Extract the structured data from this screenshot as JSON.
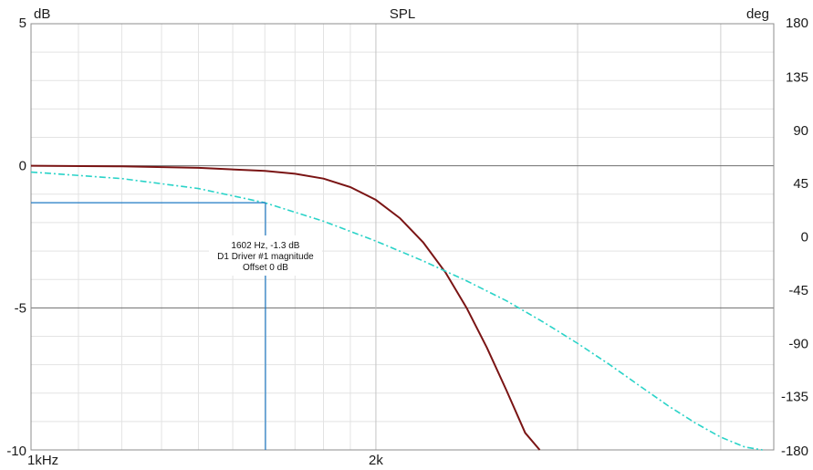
{
  "chart_data": {
    "type": "line",
    "title": "SPL",
    "left_unit": "dB",
    "right_unit": "deg",
    "x_scale": "log",
    "xlim": [
      1000,
      4450
    ],
    "ylim": [
      -10,
      5
    ],
    "y2lim": [
      -180,
      180
    ],
    "x_ticks": [
      {
        "value": 1000,
        "label": "1kHz"
      },
      {
        "value": 2000,
        "label": "2k"
      }
    ],
    "y_ticks": [
      {
        "value": 5,
        "label": "5"
      },
      {
        "value": 0,
        "label": "0"
      },
      {
        "value": -5,
        "label": "-5"
      },
      {
        "value": -10,
        "label": "-10"
      }
    ],
    "y2_ticks": [
      {
        "value": 180,
        "label": "180"
      },
      {
        "value": 135,
        "label": "135"
      },
      {
        "value": 90,
        "label": "90"
      },
      {
        "value": 45,
        "label": "45"
      },
      {
        "value": 0,
        "label": "0"
      },
      {
        "value": -45,
        "label": "-45"
      },
      {
        "value": -90,
        "label": "-90"
      },
      {
        "value": -135,
        "label": "-135"
      },
      {
        "value": -180,
        "label": "-180"
      }
    ],
    "grid": true,
    "series": [
      {
        "color": "#7a1414",
        "style": "solid",
        "x": [
          1000,
          1200,
          1400,
          1600,
          1700,
          1800,
          1900,
          2000,
          2100,
          2200,
          2300,
          2400,
          2500,
          2600,
          2700,
          2780
        ],
        "y": [
          0.0,
          -0.02,
          -0.07,
          -0.18,
          -0.28,
          -0.45,
          -0.75,
          -1.2,
          -1.85,
          -2.7,
          -3.75,
          -5.0,
          -6.4,
          -7.9,
          -9.4,
          -10.0
        ]
      },
      {
        "color": "#2ad3c8",
        "style": "dashdot",
        "x": [
          1000,
          1200,
          1400,
          1600,
          1800,
          2000,
          2200,
          2400,
          2600,
          2800,
          3000,
          3200,
          3400,
          3600,
          3800,
          4000,
          4200,
          4350
        ],
        "y": [
          -0.22,
          -0.45,
          -0.8,
          -1.3,
          -1.95,
          -2.65,
          -3.35,
          -4.05,
          -4.75,
          -5.5,
          -6.25,
          -7.0,
          -7.75,
          -8.45,
          -9.05,
          -9.55,
          -9.9,
          -10.0
        ]
      }
    ],
    "cursor": {
      "x": 1602,
      "y": -1.3,
      "color": "#1f7ac4",
      "lines": [
        "1602 Hz, -1.3 dB",
        "D1 Driver #1 magnitude",
        "Offset 0 dB"
      ]
    }
  }
}
